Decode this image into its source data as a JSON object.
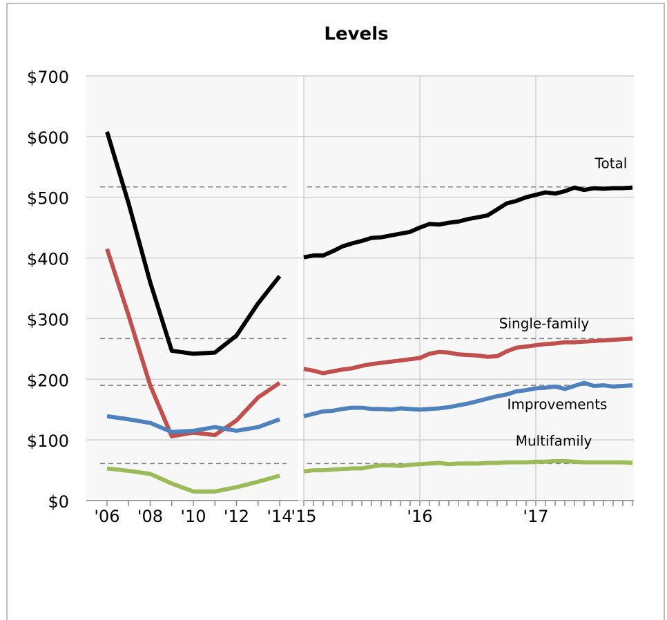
{
  "chart_data": [
    {
      "type": "line",
      "title": "Levels",
      "categories": [
        "'06",
        null,
        "'08",
        null,
        "'10",
        null,
        "'12",
        null,
        "'14"
      ],
      "ylim": [
        0,
        700
      ],
      "yticks": [
        {
          "value": 0,
          "label": "$0"
        },
        {
          "value": 100,
          "label": "$100"
        },
        {
          "value": 200,
          "label": "$200"
        },
        {
          "value": 300,
          "label": "$300"
        },
        {
          "value": 400,
          "label": "$400"
        },
        {
          "value": 500,
          "label": "$500"
        },
        {
          "value": 600,
          "label": "$600"
        },
        {
          "value": 700,
          "label": "$700"
        }
      ],
      "grid": true,
      "reference_lines": [
        517,
        267,
        190,
        61
      ],
      "series": [
        {
          "color": "#000000",
          "values": [
            608,
            490,
            360,
            247,
            242,
            244,
            272,
            325,
            370
          ]
        },
        {
          "color": "#c0504d",
          "values": [
            415,
            305,
            190,
            106,
            112,
            108,
            132,
            170,
            194
          ]
        },
        {
          "color": "#4f81bd",
          "values": [
            139,
            134,
            128,
            113,
            115,
            121,
            115,
            121,
            134
          ]
        },
        {
          "color": "#9bbb59",
          "values": [
            53,
            49,
            44,
            28,
            15,
            15,
            22,
            31,
            41
          ]
        }
      ]
    },
    {
      "type": "line",
      "categories": [
        "'15",
        null,
        null,
        null,
        null,
        null,
        null,
        null,
        null,
        null,
        null,
        null,
        "'16",
        null,
        null,
        null,
        null,
        null,
        null,
        null,
        null,
        null,
        null,
        null,
        "'17",
        null,
        null,
        null,
        null,
        null,
        null,
        null,
        null,
        null,
        null
      ],
      "ylim": [
        0,
        700
      ],
      "yticks": [
        0,
        100,
        200,
        300,
        400,
        500,
        600,
        700
      ],
      "grid": true,
      "reference_lines": [
        517,
        267,
        190,
        61
      ],
      "series": [
        {
          "name": "Total",
          "color": "#000000",
          "values": [
            401,
            404,
            404,
            411,
            419,
            424,
            428,
            433,
            434,
            437,
            440,
            443,
            450,
            456,
            455,
            458,
            460,
            464,
            467,
            470,
            480,
            490,
            494,
            500,
            504,
            508,
            506,
            510,
            516,
            512,
            515,
            514,
            515,
            515,
            516
          ]
        },
        {
          "name": "Single-family",
          "color": "#c0504d",
          "values": [
            217,
            214,
            210,
            213,
            216,
            218,
            222,
            225,
            227,
            229,
            231,
            233,
            235,
            242,
            245,
            244,
            241,
            240,
            239,
            237,
            238,
            246,
            252,
            254,
            256,
            258,
            259,
            261,
            261,
            262,
            263,
            264,
            265,
            266,
            267
          ]
        },
        {
          "name": "Improvements",
          "color": "#4f81bd",
          "values": [
            139,
            143,
            147,
            148,
            151,
            153,
            153,
            151,
            151,
            150,
            152,
            151,
            150,
            151,
            152,
            154,
            157,
            160,
            164,
            168,
            172,
            175,
            180,
            182,
            185,
            186,
            188,
            184,
            189,
            194,
            189,
            190,
            188,
            189,
            190
          ]
        },
        {
          "name": "Multifamily",
          "color": "#9bbb59",
          "values": [
            48,
            50,
            50,
            51,
            52,
            53,
            53,
            56,
            58,
            58,
            57,
            59,
            60,
            61,
            62,
            60,
            61,
            61,
            61,
            62,
            62,
            63,
            63,
            63,
            64,
            64,
            65,
            65,
            64,
            63,
            63,
            63,
            63,
            63,
            62
          ]
        }
      ]
    }
  ]
}
